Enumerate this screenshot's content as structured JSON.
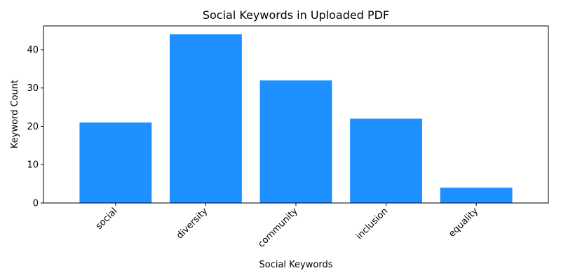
{
  "chart_data": {
    "type": "bar",
    "title": "Social Keywords in Uploaded PDF",
    "xlabel": "Social Keywords",
    "ylabel": "Keyword Count",
    "categories": [
      "social",
      "diversity",
      "community",
      "inclusion",
      "equality"
    ],
    "values": [
      21,
      44,
      32,
      22,
      4
    ],
    "ylim": [
      0,
      46.2
    ],
    "yticks": [
      0,
      10,
      20,
      30,
      40
    ],
    "bar_color": "#1e90ff",
    "grid": false,
    "legend": "none"
  }
}
